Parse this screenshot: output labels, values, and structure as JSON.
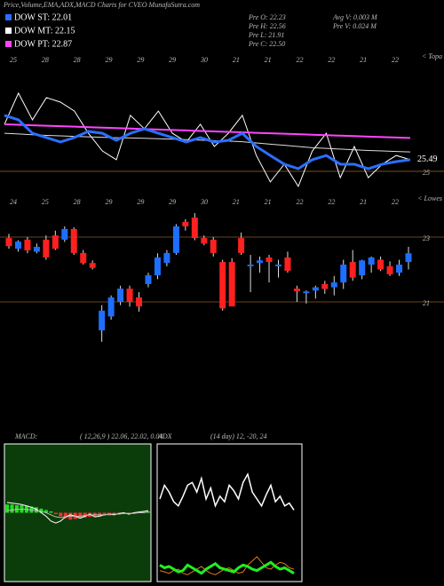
{
  "header": {
    "title": "Price,Volume,EMA,ADX,MACD Charts for CVEO MunafaSutra.com",
    "legend": [
      {
        "label": "DOW ST: 22.01",
        "color": "#2b6fff"
      },
      {
        "label": "DOW MT: 22.15",
        "color": "#ffffff"
      },
      {
        "label": "DOW PT: 22.87",
        "color": "#ff44ff"
      }
    ],
    "info_left": [
      "Pre  O: 22.23",
      "Pre  H: 22.56",
      "Pre  L: 21.91",
      "Pre  C: 22.50"
    ],
    "info_right": [
      "Avg V: 0.003 M",
      "Pre  V: 0.024  M"
    ]
  },
  "chart_data": [
    {
      "type": "line",
      "corner_label": "< Topa",
      "end_label": "25.49",
      "x_labels": [
        "25",
        "28",
        "28",
        "29",
        "29",
        "29",
        "30",
        "21",
        "21",
        "22",
        "22",
        "21",
        "22"
      ],
      "ylim": [
        24.17,
        29.81
      ],
      "yticks": [
        25
      ],
      "series": [
        {
          "color": "#ffffff",
          "width": 1,
          "values": [
            26.99,
            28.31,
            27.18,
            28.12,
            27.93,
            27.55,
            26.61,
            25.86,
            25.49,
            27.37,
            26.8,
            27.55,
            26.61,
            26.24,
            26.99,
            26.05,
            26.61,
            27.37,
            25.67,
            24.55,
            25.3,
            24.36,
            25.86,
            26.61,
            24.73,
            26.05,
            24.73,
            25.3,
            25.67,
            25.49
          ]
        },
        {
          "color": "#dddddd",
          "width": 1,
          "values": [
            26.61,
            26.58,
            26.55,
            26.52,
            26.5,
            26.48,
            26.46,
            26.44,
            26.42,
            26.41,
            26.4,
            26.38,
            26.36,
            26.34,
            26.32,
            26.3,
            26.28,
            26.25,
            26.2,
            26.15,
            26.1,
            26.05,
            26.0,
            25.97,
            25.94,
            25.91,
            25.88,
            25.86,
            25.84,
            25.82
          ]
        },
        {
          "color": "#ff44ff",
          "width": 2,
          "values": [
            26.99,
            26.97,
            26.95,
            26.93,
            26.91,
            26.89,
            26.87,
            26.85,
            26.83,
            26.81,
            26.79,
            26.77,
            26.75,
            26.73,
            26.71,
            26.69,
            26.67,
            26.65,
            26.63,
            26.61,
            26.59,
            26.57,
            26.55,
            26.53,
            26.51,
            26.49,
            26.47,
            26.45,
            26.43,
            26.41
          ]
        },
        {
          "color": "#2b6fff",
          "width": 3,
          "values": [
            27.37,
            27.18,
            26.61,
            26.43,
            26.24,
            26.43,
            26.69,
            26.61,
            26.31,
            26.61,
            26.8,
            26.61,
            26.43,
            26.24,
            26.43,
            26.24,
            26.31,
            26.61,
            26.05,
            25.67,
            25.3,
            25.11,
            25.49,
            25.67,
            25.3,
            25.3,
            25.11,
            25.3,
            25.41,
            25.49
          ]
        }
      ]
    },
    {
      "type": "candlestick",
      "corner_label": "< Lowes",
      "x_labels": [
        "24",
        "25",
        "28",
        "29",
        "29",
        "29",
        "30",
        "21",
        "21",
        "22",
        "22",
        "21",
        "22"
      ],
      "ylim": [
        19.74,
        23.74
      ],
      "yticks": [
        21,
        23
      ],
      "up_color": "#1e6fff",
      "down_color": "#ff2020",
      "open": [
        22.97,
        22.64,
        22.92,
        22.55,
        22.92,
        23.05,
        22.92,
        23.25,
        22.51,
        22.2,
        20.12,
        20.55,
        21.0,
        21.41,
        21.14,
        21.55,
        21.82,
        22.2,
        22.51,
        23.47,
        23.6,
        22.97,
        22.92,
        22.23,
        22.23,
        22.97,
        22.1,
        22.2,
        22.37,
        22.1,
        22.37,
        21.41,
        21.27,
        21.35,
        21.55,
        21.45,
        21.6,
        22.23,
        21.82,
        22.15,
        22.3,
        22.1,
        21.9,
        22.23
      ],
      "high": [
        23.1,
        22.9,
        23.0,
        22.8,
        23.05,
        23.2,
        23.33,
        23.3,
        22.6,
        22.28,
        20.9,
        21.2,
        21.5,
        21.5,
        21.3,
        21.9,
        22.5,
        22.6,
        23.4,
        23.55,
        23.74,
        23.05,
        23.0,
        22.3,
        22.35,
        23.14,
        22.45,
        22.4,
        22.45,
        22.3,
        22.55,
        21.5,
        21.35,
        21.5,
        21.65,
        21.8,
        22.3,
        22.6,
        22.3,
        22.4,
        22.4,
        22.25,
        22.3,
        22.7
      ],
      "low": [
        22.64,
        22.55,
        22.5,
        22.5,
        22.3,
        22.6,
        22.85,
        22.45,
        22.15,
        22.0,
        19.77,
        20.45,
        20.9,
        20.85,
        20.7,
        21.45,
        21.7,
        22.1,
        22.45,
        23.2,
        22.9,
        22.75,
        22.4,
        20.73,
        20.86,
        22.45,
        21.3,
        21.9,
        21.6,
        21.75,
        21.9,
        21.0,
        20.95,
        21.1,
        21.25,
        21.2,
        21.4,
        21.65,
        21.7,
        21.9,
        21.95,
        21.8,
        21.8,
        22.0
      ],
      "close": [
        22.72,
        22.86,
        22.59,
        22.7,
        22.37,
        22.64,
        23.25,
        22.51,
        22.2,
        22.05,
        20.73,
        21.14,
        21.41,
        21.0,
        20.86,
        21.82,
        22.37,
        22.51,
        23.33,
        23.33,
        22.97,
        22.8,
        22.51,
        20.8,
        20.86,
        22.51,
        22.15,
        22.28,
        22.23,
        22.15,
        21.96,
        21.33,
        21.32,
        21.45,
        21.4,
        21.6,
        22.15,
        21.75,
        22.28,
        22.37,
        22.0,
        21.85,
        22.15,
        22.5
      ]
    },
    {
      "type": "macd",
      "title": "MACD:",
      "subtitle": "( 12,26,9 ) 22.06, 22.02, 0.04",
      "ylim": [
        -1,
        1
      ],
      "background": "#0b3d0b",
      "histogram": [
        0.12,
        0.12,
        0.11,
        0.11,
        0.1,
        0.09,
        0.08,
        0.06,
        0.04,
        0.02,
        -0.02,
        -0.05,
        -0.08,
        -0.1,
        -0.09,
        -0.08,
        -0.07,
        -0.06,
        -0.05,
        -0.05,
        -0.04,
        -0.04,
        -0.03,
        -0.02,
        -0.02,
        -0.01,
        -0.01,
        0,
        0.01,
        0.02
      ],
      "series": [
        {
          "color": "#ffffff",
          "values": [
            0.15,
            0.14,
            0.13,
            0.12,
            0.1,
            0.08,
            0.05,
            0.0,
            -0.05,
            -0.12,
            -0.15,
            -0.12,
            -0.06,
            -0.03,
            -0.05,
            -0.08,
            -0.05,
            -0.02,
            -0.06,
            -0.05,
            -0.03,
            -0.02,
            -0.03,
            -0.01,
            0.0,
            -0.02,
            0.0,
            0.01,
            0.02,
            0.03
          ]
        },
        {
          "color": "#bbbbbb",
          "values": [
            0.03,
            0.04,
            0.05,
            0.05,
            0.05,
            0.04,
            0.03,
            0.02,
            0.0,
            -0.03,
            -0.06,
            -0.07,
            -0.06,
            -0.05,
            -0.05,
            -0.05,
            -0.04,
            -0.03,
            -0.03,
            -0.03,
            -0.03,
            -0.02,
            -0.02,
            -0.02,
            -0.01,
            -0.01,
            -0.01,
            0.0,
            0.0,
            0.01
          ]
        }
      ]
    },
    {
      "type": "adx",
      "title": "ADX",
      "subtitle": "(14 day) 12, -20, 24",
      "ylim": [
        0,
        100
      ],
      "background": "#000000",
      "series": [
        {
          "color": "#ffffff",
          "width": 1.5,
          "values": [
            60,
            70,
            65,
            58,
            55,
            62,
            70,
            72,
            65,
            75,
            60,
            68,
            55,
            62,
            58,
            70,
            66,
            60,
            72,
            78,
            65,
            60,
            55,
            63,
            70,
            58,
            62,
            55,
            57,
            52
          ]
        },
        {
          "color": "#e07b1a",
          "width": 1,
          "values": [
            8,
            7,
            6,
            8,
            9,
            6,
            5,
            7,
            9,
            11,
            8,
            6,
            5,
            7,
            9,
            10,
            8,
            6,
            7,
            12,
            15,
            18,
            14,
            10,
            9,
            12,
            14,
            13,
            10,
            9
          ]
        },
        {
          "color": "#22ee22",
          "width": 3,
          "values": [
            12,
            10,
            11,
            9,
            7,
            8,
            12,
            10,
            8,
            6,
            9,
            11,
            13,
            10,
            9,
            8,
            7,
            10,
            12,
            11,
            9,
            8,
            10,
            12,
            14,
            11,
            9,
            10,
            8,
            6
          ]
        }
      ]
    }
  ]
}
